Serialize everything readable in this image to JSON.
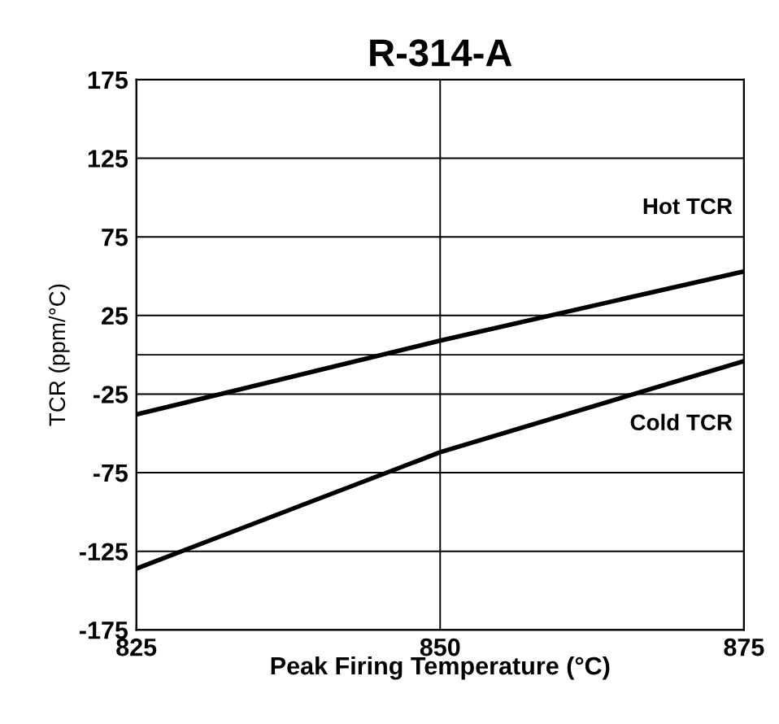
{
  "chart_data": {
    "type": "line",
    "title": "R-314-A",
    "xlabel": "Peak Firing Temperature (°C)",
    "ylabel": "TCR (ppm/°C)",
    "x": [
      825,
      850,
      875
    ],
    "series": [
      {
        "name": "Hot TCR",
        "color": "#000000",
        "values": [
          -38,
          9,
          53
        ]
      },
      {
        "name": "Cold TCR",
        "color": "#000000",
        "values": [
          -136,
          -62,
          -4
        ]
      }
    ],
    "xlim": [
      825,
      875
    ],
    "xticks": [
      825,
      850,
      875
    ],
    "ylim": [
      -175,
      175
    ],
    "yticks": [
      -175,
      -125,
      -75,
      -25,
      25,
      75,
      125,
      175
    ],
    "ref_lines": [
      {
        "axis": "y",
        "value": 0,
        "color": "#000000"
      }
    ],
    "grid": true,
    "marker": "none",
    "line_style": "solid",
    "legend": false
  }
}
